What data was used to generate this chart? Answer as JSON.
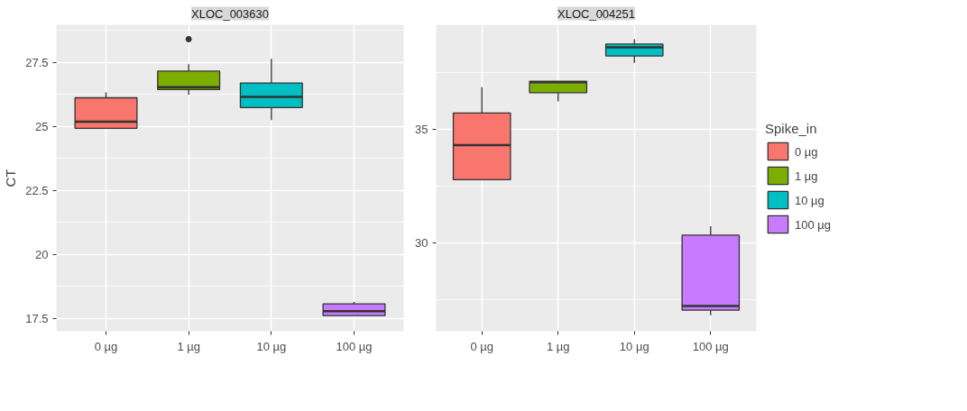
{
  "chart_data": [
    {
      "type": "box",
      "title": "XLOC_003630",
      "ylabel": "CT",
      "categories": [
        "0 µg",
        "1 µg",
        "10 µg",
        "100 µg"
      ],
      "ylim": [
        17.0,
        28.96
      ],
      "yticks": [
        17.5,
        20.0,
        22.5,
        25.0,
        27.5
      ],
      "grid": true,
      "legend": false,
      "series": [
        {
          "color": "#f8766d",
          "boxes": [
            {
              "low": 24.92,
              "q1": 24.92,
              "median": 25.18,
              "q3": 26.11,
              "high": 26.32
            },
            null,
            null,
            null
          ]
        },
        {
          "color": "#7cae00",
          "boxes": [
            null,
            {
              "low": 26.23,
              "q1": 26.43,
              "median": 26.52,
              "q3": 27.15,
              "high": 27.42,
              "outliers": [
                28.4
              ]
            },
            null,
            null
          ]
        },
        {
          "color": "#00bfc4",
          "boxes": [
            null,
            null,
            {
              "low": 25.24,
              "q1": 25.73,
              "median": 26.15,
              "q3": 26.69,
              "high": 27.63
            },
            null
          ]
        },
        {
          "color": "#c77cff",
          "boxes": [
            null,
            null,
            null,
            {
              "low": 17.61,
              "q1": 17.61,
              "median": 17.78,
              "q3": 18.07,
              "high": 18.14
            }
          ]
        }
      ]
    },
    {
      "type": "box",
      "title": "XLOC_004251",
      "legend_title": "Spike_in",
      "categories": [
        "0 µg",
        "1 µg",
        "10 µg",
        "100 µg"
      ],
      "ylim": [
        26.12,
        39.61
      ],
      "yticks": [
        30,
        35
      ],
      "grid": true,
      "legend": "right",
      "series": [
        {
          "name": "0 µg",
          "color": "#f8766d",
          "boxes": [
            {
              "low": 32.79,
              "q1": 32.79,
              "median": 34.31,
              "q3": 35.73,
              "high": 36.86
            },
            null,
            null,
            null
          ]
        },
        {
          "name": "1 µg",
          "color": "#7cae00",
          "boxes": [
            null,
            {
              "low": 36.24,
              "q1": 36.62,
              "median": 37.08,
              "q3": 37.12,
              "high": 37.12
            },
            null,
            null
          ]
        },
        {
          "name": "10 µg",
          "color": "#00bfc4",
          "boxes": [
            null,
            null,
            {
              "low": 37.93,
              "q1": 38.24,
              "median": 38.62,
              "q3": 38.76,
              "high": 38.98
            },
            null
          ]
        },
        {
          "name": "100 µg",
          "color": "#c77cff",
          "boxes": [
            null,
            null,
            null,
            {
              "low": 26.82,
              "q1": 27.05,
              "median": 27.23,
              "q3": 30.35,
              "high": 30.74
            }
          ]
        }
      ]
    }
  ]
}
